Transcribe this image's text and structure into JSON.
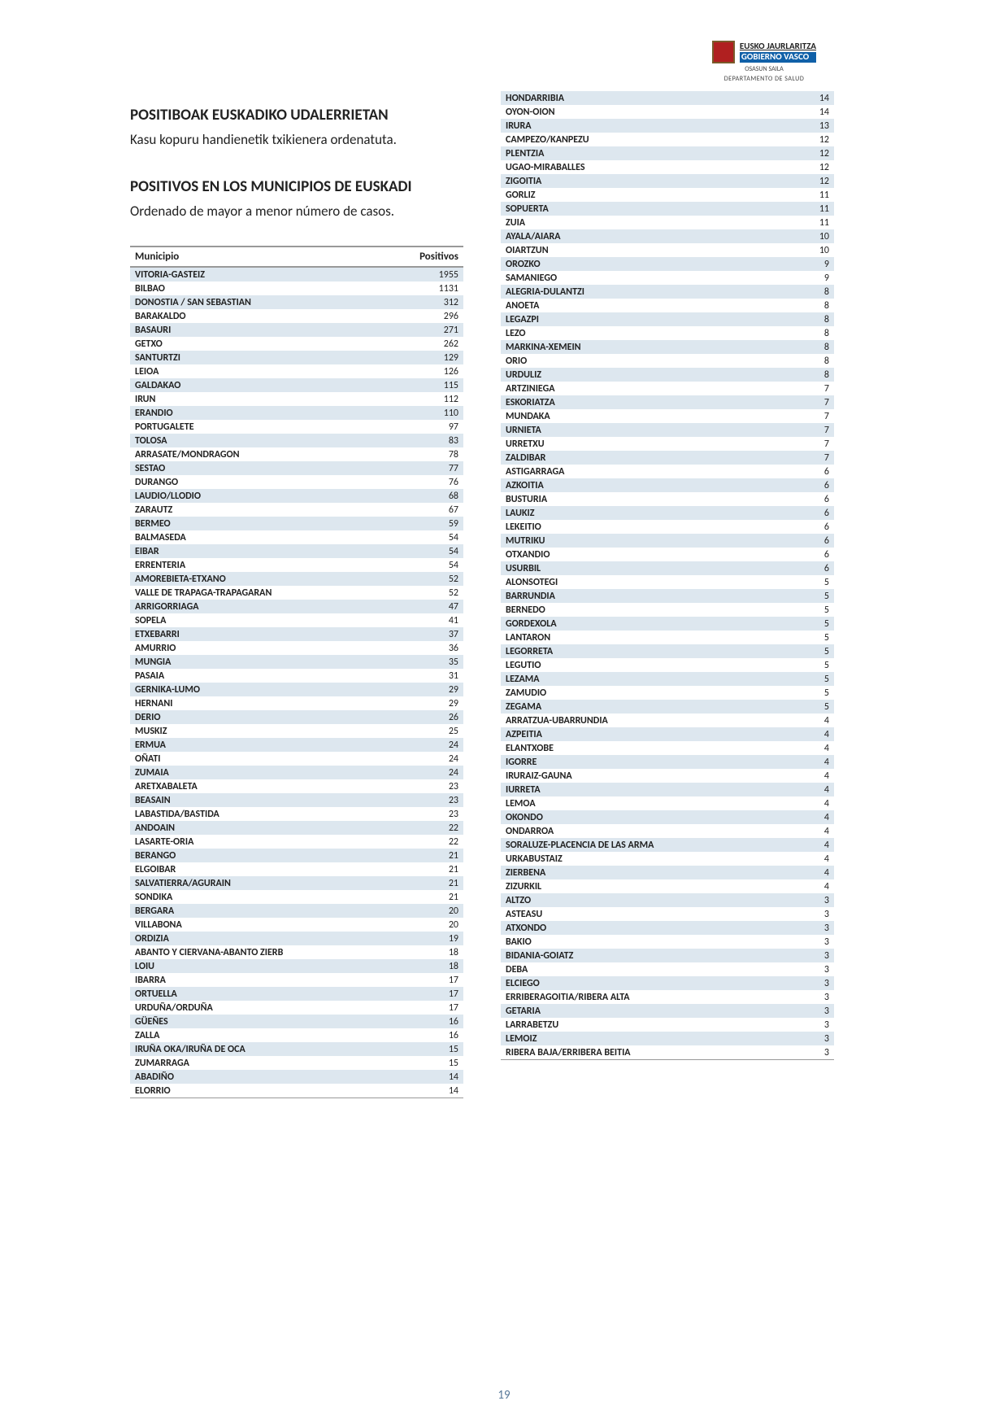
{
  "logo": {
    "line1": "EUSKO JAURLARITZA",
    "line2": "GOBIERNO VASCO",
    "sub": "OSASUN SAILA",
    "dept": "DEPARTAMENTO DE SALUD"
  },
  "titles": {
    "eu_heading": "POSITIBOAK EUSKADIKO UDALERRIETAN",
    "eu_sub": "Kasu kopuru handienetik txikienera ordenatuta.",
    "es_heading": "POSITIVOS EN LOS MUNICIPIOS DE EUSKADI",
    "es_sub": "Ordenado de mayor a menor número de casos."
  },
  "table": {
    "col_muni": "Municipio",
    "col_pos": "Positivos"
  },
  "colors": {
    "alt_row": "#dde7ef",
    "border": "#999999",
    "text": "#222222",
    "pagenum": "#5a7a9a"
  },
  "col1": [
    {
      "m": "VITORIA-GASTEIZ",
      "v": 1955
    },
    {
      "m": "BILBAO",
      "v": 1131
    },
    {
      "m": "DONOSTIA / SAN SEBASTIAN",
      "v": 312
    },
    {
      "m": "BARAKALDO",
      "v": 296
    },
    {
      "m": "BASAURI",
      "v": 271
    },
    {
      "m": "GETXO",
      "v": 262
    },
    {
      "m": "SANTURTZI",
      "v": 129
    },
    {
      "m": "LEIOA",
      "v": 126
    },
    {
      "m": "GALDAKAO",
      "v": 115
    },
    {
      "m": "IRUN",
      "v": 112
    },
    {
      "m": "ERANDIO",
      "v": 110
    },
    {
      "m": "PORTUGALETE",
      "v": 97
    },
    {
      "m": "TOLOSA",
      "v": 83
    },
    {
      "m": "ARRASATE/MONDRAGON",
      "v": 78
    },
    {
      "m": "SESTAO",
      "v": 77
    },
    {
      "m": "DURANGO",
      "v": 76
    },
    {
      "m": "LAUDIO/LLODIO",
      "v": 68
    },
    {
      "m": "ZARAUTZ",
      "v": 67
    },
    {
      "m": "BERMEO",
      "v": 59
    },
    {
      "m": "BALMASEDA",
      "v": 54
    },
    {
      "m": "EIBAR",
      "v": 54
    },
    {
      "m": "ERRENTERIA",
      "v": 54
    },
    {
      "m": "AMOREBIETA-ETXANO",
      "v": 52
    },
    {
      "m": "VALLE DE TRAPAGA-TRAPAGARAN",
      "v": 52
    },
    {
      "m": "ARRIGORRIAGA",
      "v": 47
    },
    {
      "m": "SOPELA",
      "v": 41
    },
    {
      "m": "ETXEBARRI",
      "v": 37
    },
    {
      "m": "AMURRIO",
      "v": 36
    },
    {
      "m": "MUNGIA",
      "v": 35
    },
    {
      "m": "PASAIA",
      "v": 31
    },
    {
      "m": "GERNIKA-LUMO",
      "v": 29
    },
    {
      "m": "HERNANI",
      "v": 29
    },
    {
      "m": "DERIO",
      "v": 26
    },
    {
      "m": "MUSKIZ",
      "v": 25
    },
    {
      "m": "ERMUA",
      "v": 24
    },
    {
      "m": "OÑATI",
      "v": 24
    },
    {
      "m": "ZUMAIA",
      "v": 24
    },
    {
      "m": "ARETXABALETA",
      "v": 23
    },
    {
      "m": "BEASAIN",
      "v": 23
    },
    {
      "m": "LABASTIDA/BASTIDA",
      "v": 23
    },
    {
      "m": "ANDOAIN",
      "v": 22
    },
    {
      "m": "LASARTE-ORIA",
      "v": 22
    },
    {
      "m": "BERANGO",
      "v": 21
    },
    {
      "m": "ELGOIBAR",
      "v": 21
    },
    {
      "m": "SALVATIERRA/AGURAIN",
      "v": 21
    },
    {
      "m": "SONDIKA",
      "v": 21
    },
    {
      "m": "BERGARA",
      "v": 20
    },
    {
      "m": "VILLABONA",
      "v": 20
    },
    {
      "m": "ORDIZIA",
      "v": 19
    },
    {
      "m": "ABANTO Y CIERVANA-ABANTO ZIERB",
      "v": 18
    },
    {
      "m": "LOIU",
      "v": 18
    },
    {
      "m": "IBARRA",
      "v": 17
    },
    {
      "m": "ORTUELLA",
      "v": 17
    },
    {
      "m": "URDUÑA/ORDUÑA",
      "v": 17
    },
    {
      "m": "GÜEÑES",
      "v": 16
    },
    {
      "m": "ZALLA",
      "v": 16
    },
    {
      "m": "IRUÑA OKA/IRUÑA DE OCA",
      "v": 15
    },
    {
      "m": "ZUMARRAGA",
      "v": 15
    },
    {
      "m": "ABADIÑO",
      "v": 14
    },
    {
      "m": "ELORRIO",
      "v": 14
    }
  ],
  "col2": [
    {
      "m": "HONDARRIBIA",
      "v": 14
    },
    {
      "m": "OYON-OION",
      "v": 14
    },
    {
      "m": "IRURA",
      "v": 13
    },
    {
      "m": "CAMPEZO/KANPEZU",
      "v": 12
    },
    {
      "m": "PLENTZIA",
      "v": 12
    },
    {
      "m": "UGAO-MIRABALLES",
      "v": 12
    },
    {
      "m": "ZIGOITIA",
      "v": 12
    },
    {
      "m": "GORLIZ",
      "v": 11
    },
    {
      "m": "SOPUERTA",
      "v": 11
    },
    {
      "m": "ZUIA",
      "v": 11
    },
    {
      "m": "AYALA/AIARA",
      "v": 10
    },
    {
      "m": "OIARTZUN",
      "v": 10
    },
    {
      "m": "OROZKO",
      "v": 9
    },
    {
      "m": "SAMANIEGO",
      "v": 9
    },
    {
      "m": "ALEGRIA-DULANTZI",
      "v": 8
    },
    {
      "m": "ANOETA",
      "v": 8
    },
    {
      "m": "LEGAZPI",
      "v": 8
    },
    {
      "m": "LEZO",
      "v": 8
    },
    {
      "m": "MARKINA-XEMEIN",
      "v": 8
    },
    {
      "m": "ORIO",
      "v": 8
    },
    {
      "m": "URDULIZ",
      "v": 8
    },
    {
      "m": "ARTZINIEGA",
      "v": 7
    },
    {
      "m": "ESKORIATZA",
      "v": 7
    },
    {
      "m": "MUNDAKA",
      "v": 7
    },
    {
      "m": "URNIETA",
      "v": 7
    },
    {
      "m": "URRETXU",
      "v": 7
    },
    {
      "m": "ZALDIBAR",
      "v": 7
    },
    {
      "m": "ASTIGARRAGA",
      "v": 6
    },
    {
      "m": "AZKOITIA",
      "v": 6
    },
    {
      "m": "BUSTURIA",
      "v": 6
    },
    {
      "m": "LAUKIZ",
      "v": 6
    },
    {
      "m": "LEKEITIO",
      "v": 6
    },
    {
      "m": "MUTRIKU",
      "v": 6
    },
    {
      "m": "OTXANDIO",
      "v": 6
    },
    {
      "m": "USURBIL",
      "v": 6
    },
    {
      "m": "ALONSOTEGI",
      "v": 5
    },
    {
      "m": "BARRUNDIA",
      "v": 5
    },
    {
      "m": "BERNEDO",
      "v": 5
    },
    {
      "m": "GORDEXOLA",
      "v": 5
    },
    {
      "m": "LANTARON",
      "v": 5
    },
    {
      "m": "LEGORRETA",
      "v": 5
    },
    {
      "m": "LEGUTIO",
      "v": 5
    },
    {
      "m": "LEZAMA",
      "v": 5
    },
    {
      "m": "ZAMUDIO",
      "v": 5
    },
    {
      "m": "ZEGAMA",
      "v": 5
    },
    {
      "m": "ARRATZUA-UBARRUNDIA",
      "v": 4
    },
    {
      "m": "AZPEITIA",
      "v": 4
    },
    {
      "m": "ELANTXOBE",
      "v": 4
    },
    {
      "m": "IGORRE",
      "v": 4
    },
    {
      "m": "IRURAIZ-GAUNA",
      "v": 4
    },
    {
      "m": "IURRETA",
      "v": 4
    },
    {
      "m": "LEMOA",
      "v": 4
    },
    {
      "m": "OKONDO",
      "v": 4
    },
    {
      "m": "ONDARROA",
      "v": 4
    },
    {
      "m": "SORALUZE-PLACENCIA DE LAS ARMA",
      "v": 4
    },
    {
      "m": "URKABUSTAIZ",
      "v": 4
    },
    {
      "m": "ZIERBENA",
      "v": 4
    },
    {
      "m": "ZIZURKIL",
      "v": 4
    },
    {
      "m": "ALTZO",
      "v": 3
    },
    {
      "m": "ASTEASU",
      "v": 3
    },
    {
      "m": "ATXONDO",
      "v": 3
    },
    {
      "m": "BAKIO",
      "v": 3
    },
    {
      "m": "BIDANIA-GOIATZ",
      "v": 3
    },
    {
      "m": "DEBA",
      "v": 3
    },
    {
      "m": "ELCIEGO",
      "v": 3
    },
    {
      "m": "ERRIBERAGOITIA/RIBERA ALTA",
      "v": 3
    },
    {
      "m": "GETARIA",
      "v": 3
    },
    {
      "m": "LARRABETZU",
      "v": 3
    },
    {
      "m": "LEMOIZ",
      "v": 3
    },
    {
      "m": "RIBERA BAJA/ERRIBERA BEITIA",
      "v": 3
    }
  ],
  "page_number": "19"
}
